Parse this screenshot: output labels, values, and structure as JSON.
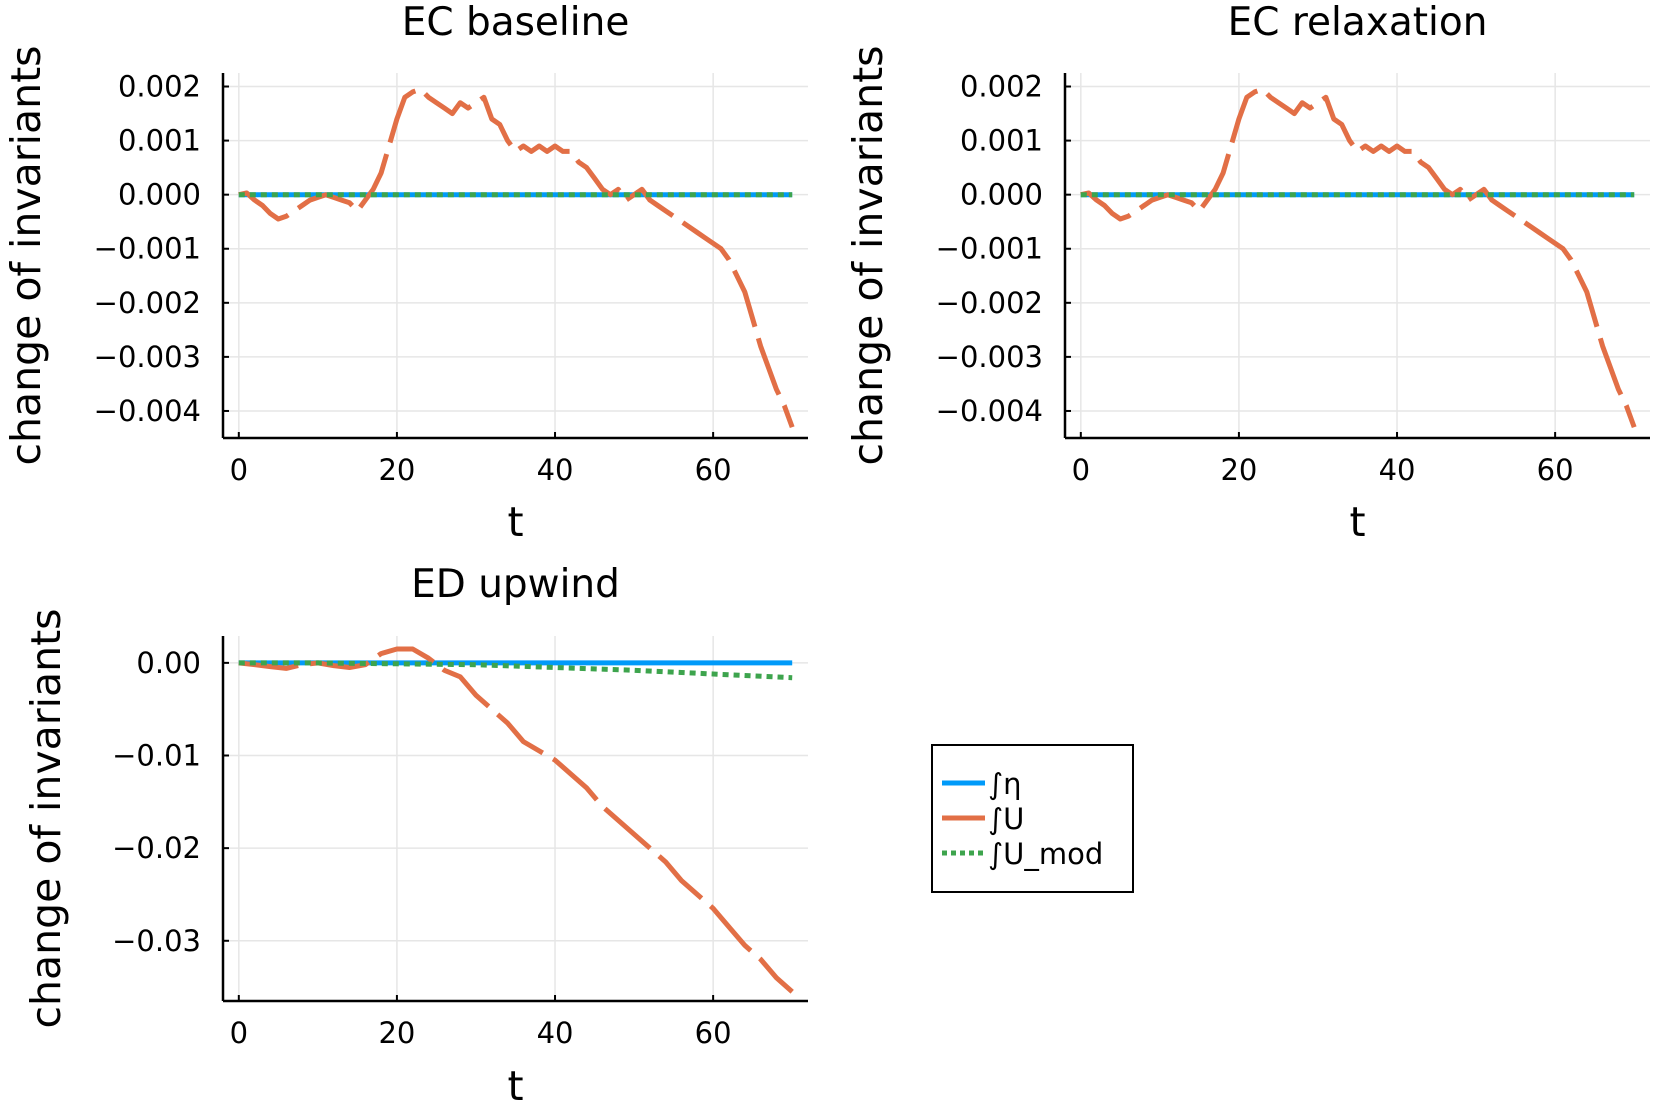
{
  "chart_data": [
    {
      "type": "line",
      "title": "EC baseline",
      "xlabel": "t",
      "ylabel": "change of invariants",
      "xlim": [
        -2,
        72
      ],
      "ylim": [
        -0.0045,
        0.00225
      ],
      "xticks": [
        0,
        20,
        40,
        60
      ],
      "xtick_labels": [
        "0",
        "20",
        "40",
        "60"
      ],
      "yticks": [
        0.002,
        0.001,
        0.0,
        -0.001,
        -0.002,
        -0.003,
        -0.004
      ],
      "ytick_labels": [
        "0.002",
        "0.001",
        "0.000",
        "−0.001",
        "−0.002",
        "−0.003",
        "−0.004"
      ],
      "grid": true,
      "series": [
        {
          "name": "∫η",
          "color": "#009af9",
          "style": "solid",
          "x": [
            0,
            70
          ],
          "y": [
            0,
            0
          ]
        },
        {
          "name": "∫U",
          "color": "#e26f46",
          "style": "dashed",
          "x": [
            0,
            1,
            2,
            3,
            4,
            5,
            6,
            7,
            8,
            9,
            10,
            11,
            12,
            13,
            14,
            15,
            16,
            17,
            18,
            19,
            20,
            21,
            22,
            23,
            24,
            25,
            26,
            27,
            28,
            29,
            30,
            31,
            32,
            33,
            34,
            35,
            36,
            37,
            38,
            39,
            40,
            41,
            42,
            43,
            44,
            45,
            46,
            47,
            48,
            49,
            50,
            51,
            52,
            53,
            54,
            55,
            56,
            57,
            58,
            59,
            60,
            61,
            62,
            63,
            64,
            65,
            66,
            67,
            68,
            69,
            70
          ],
          "y": [
            0.0,
            3e-05,
            -0.0001,
            -0.0002,
            -0.00035,
            -0.00045,
            -0.0004,
            -0.0003,
            -0.0002,
            -0.0001,
            -5e-05,
            0.0,
            -5e-05,
            -0.0001,
            -0.00015,
            -0.0003,
            -0.0001,
            0.0001,
            0.0004,
            0.0009,
            0.0014,
            0.0018,
            0.0019,
            0.00195,
            0.0018,
            0.0017,
            0.0016,
            0.0015,
            0.0017,
            0.0016,
            0.0017,
            0.0018,
            0.0014,
            0.0013,
            0.001,
            0.0008,
            0.0009,
            0.0008,
            0.0009,
            0.0008,
            0.0009,
            0.0008,
            0.0008,
            0.0006,
            0.0005,
            0.0003,
            0.0001,
            0.0,
            0.0001,
            -0.0001,
            0.0,
            0.0001,
            -0.0001,
            -0.0002,
            -0.0003,
            -0.0004,
            -0.0005,
            -0.0006,
            -0.0007,
            -0.0008,
            -0.0009,
            -0.001,
            -0.0012,
            -0.0015,
            -0.0018,
            -0.0023,
            -0.0028,
            -0.0032,
            -0.0036,
            -0.0039,
            -0.0043
          ]
        },
        {
          "name": "∫U_mod",
          "color": "#3da44d",
          "style": "dotted",
          "x": [
            0,
            70
          ],
          "y": [
            0,
            0
          ]
        }
      ]
    },
    {
      "type": "line",
      "title": "EC relaxation",
      "xlabel": "t",
      "ylabel": "change of invariants",
      "xlim": [
        -2,
        72
      ],
      "ylim": [
        -0.0045,
        0.00225
      ],
      "xticks": [
        0,
        20,
        40,
        60
      ],
      "xtick_labels": [
        "0",
        "20",
        "40",
        "60"
      ],
      "yticks": [
        0.002,
        0.001,
        0.0,
        -0.001,
        -0.002,
        -0.003,
        -0.004
      ],
      "ytick_labels": [
        "0.002",
        "0.001",
        "0.000",
        "−0.001",
        "−0.002",
        "−0.003",
        "−0.004"
      ],
      "grid": true,
      "series": [
        {
          "name": "∫η",
          "color": "#009af9",
          "style": "solid",
          "x": [
            0,
            70
          ],
          "y": [
            0,
            0
          ]
        },
        {
          "name": "∫U",
          "color": "#e26f46",
          "style": "dashed",
          "x": [
            0,
            1,
            2,
            3,
            4,
            5,
            6,
            7,
            8,
            9,
            10,
            11,
            12,
            13,
            14,
            15,
            16,
            17,
            18,
            19,
            20,
            21,
            22,
            23,
            24,
            25,
            26,
            27,
            28,
            29,
            30,
            31,
            32,
            33,
            34,
            35,
            36,
            37,
            38,
            39,
            40,
            41,
            42,
            43,
            44,
            45,
            46,
            47,
            48,
            49,
            50,
            51,
            52,
            53,
            54,
            55,
            56,
            57,
            58,
            59,
            60,
            61,
            62,
            63,
            64,
            65,
            66,
            67,
            68,
            69,
            70
          ],
          "y": [
            0.0,
            3e-05,
            -0.0001,
            -0.0002,
            -0.00035,
            -0.00045,
            -0.0004,
            -0.0003,
            -0.0002,
            -0.0001,
            -5e-05,
            0.0,
            -5e-05,
            -0.0001,
            -0.00015,
            -0.0003,
            -0.0001,
            0.0001,
            0.0004,
            0.0009,
            0.0014,
            0.0018,
            0.0019,
            0.00195,
            0.0018,
            0.0017,
            0.0016,
            0.0015,
            0.0017,
            0.0016,
            0.0017,
            0.0018,
            0.0014,
            0.0013,
            0.001,
            0.0008,
            0.0009,
            0.0008,
            0.0009,
            0.0008,
            0.0009,
            0.0008,
            0.0008,
            0.0006,
            0.0005,
            0.0003,
            0.0001,
            0.0,
            0.0001,
            -0.0001,
            0.0,
            0.0001,
            -0.0001,
            -0.0002,
            -0.0003,
            -0.0004,
            -0.0005,
            -0.0006,
            -0.0007,
            -0.0008,
            -0.0009,
            -0.001,
            -0.0012,
            -0.0015,
            -0.0018,
            -0.0023,
            -0.0028,
            -0.0032,
            -0.0036,
            -0.0039,
            -0.0043
          ]
        },
        {
          "name": "∫U_mod",
          "color": "#3da44d",
          "style": "dotted",
          "x": [
            0,
            70
          ],
          "y": [
            0,
            0
          ]
        }
      ]
    },
    {
      "type": "line",
      "title": "ED upwind",
      "xlabel": "t",
      "ylabel": "change of invariants",
      "xlim": [
        -2,
        72
      ],
      "ylim": [
        -0.0365,
        0.0029
      ],
      "xticks": [
        0,
        20,
        40,
        60
      ],
      "xtick_labels": [
        "0",
        "20",
        "40",
        "60"
      ],
      "yticks": [
        0.0,
        -0.01,
        -0.02,
        -0.03
      ],
      "ytick_labels": [
        "0.00",
        "−0.01",
        "−0.02",
        "−0.03"
      ],
      "grid": true,
      "series": [
        {
          "name": "∫η",
          "color": "#009af9",
          "style": "solid",
          "x": [
            0,
            70
          ],
          "y": [
            0,
            0
          ]
        },
        {
          "name": "∫U",
          "color": "#e26f46",
          "style": "dashed",
          "x": [
            0,
            2,
            4,
            6,
            8,
            10,
            12,
            14,
            16,
            18,
            20,
            22,
            24,
            26,
            28,
            30,
            32,
            34,
            36,
            38,
            40,
            42,
            44,
            46,
            48,
            50,
            52,
            54,
            56,
            58,
            60,
            62,
            64,
            66,
            68,
            70
          ],
          "y": [
            0.0,
            -0.0002,
            -0.0004,
            -0.0006,
            -0.0002,
            0.0,
            -0.0003,
            -0.0005,
            -0.0002,
            0.001,
            0.0015,
            0.0015,
            0.0005,
            -0.0008,
            -0.0015,
            -0.0035,
            -0.005,
            -0.0065,
            -0.0085,
            -0.0095,
            -0.0105,
            -0.012,
            -0.0135,
            -0.0155,
            -0.017,
            -0.0185,
            -0.02,
            -0.0215,
            -0.0235,
            -0.025,
            -0.0265,
            -0.0285,
            -0.0305,
            -0.032,
            -0.034,
            -0.0355
          ]
        },
        {
          "name": "∫U_mod",
          "color": "#3da44d",
          "style": "dotted",
          "x": [
            0,
            10,
            20,
            30,
            40,
            50,
            60,
            70
          ],
          "y": [
            0.0,
            0.0,
            -0.0001,
            -0.0002,
            -0.0005,
            -0.0008,
            -0.0012,
            -0.0016
          ]
        }
      ]
    }
  ],
  "legend": {
    "position": "right",
    "entries": [
      {
        "label": "∫η",
        "color": "#009af9",
        "style": "solid"
      },
      {
        "label": "∫U",
        "color": "#e26f46",
        "style": "solid"
      },
      {
        "label": "∫U_mod",
        "color": "#3da44d",
        "style": "dotted"
      }
    ]
  }
}
